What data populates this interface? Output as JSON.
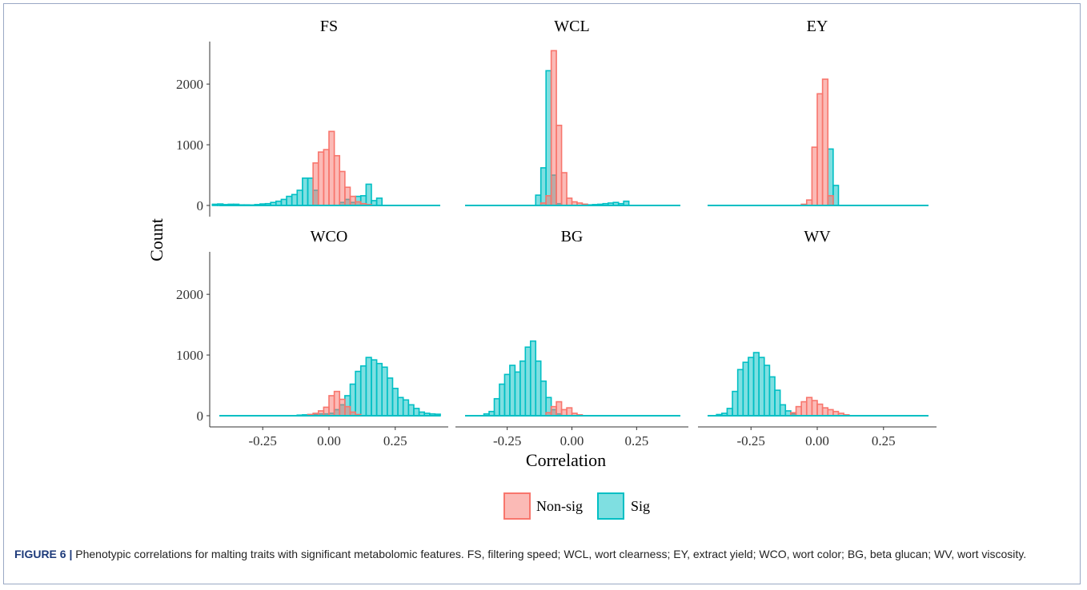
{
  "chart_data": {
    "type": "histogram",
    "facets": [
      "FS",
      "WCL",
      "EY",
      "WCO",
      "BG",
      "WV"
    ],
    "ylabel": "Count",
    "xlabel": "Correlation",
    "xticks": [
      "-0.25",
      "0.00",
      "0.25"
    ],
    "yticks": [
      "0",
      "1000",
      "2000"
    ],
    "xlim": [
      -0.45,
      0.45
    ],
    "ylim": [
      0,
      2700
    ],
    "legend": {
      "items": [
        "Non-sig",
        "Sig"
      ],
      "position": "bottom"
    },
    "series_colors": {
      "Non-sig": "#F8766D",
      "Sig": "#00BFC4"
    },
    "series_names": [
      "Non-sig",
      "Sig"
    ],
    "bin_width": 0.02,
    "panels": [
      {
        "name": "FS",
        "bins": {
          "Sig": [
            [
              -0.43,
              20
            ],
            [
              -0.41,
              25
            ],
            [
              -0.39,
              15
            ],
            [
              -0.37,
              20
            ],
            [
              -0.35,
              20
            ],
            [
              -0.33,
              10
            ],
            [
              -0.31,
              10
            ],
            [
              -0.29,
              8
            ],
            [
              -0.27,
              15
            ],
            [
              -0.25,
              25
            ],
            [
              -0.23,
              30
            ],
            [
              -0.21,
              50
            ],
            [
              -0.19,
              70
            ],
            [
              -0.17,
              100
            ],
            [
              -0.15,
              150
            ],
            [
              -0.13,
              180
            ],
            [
              -0.11,
              250
            ],
            [
              -0.09,
              450
            ],
            [
              -0.07,
              450
            ],
            [
              -0.05,
              250
            ],
            [
              0.05,
              50
            ],
            [
              0.07,
              100
            ],
            [
              0.09,
              50
            ],
            [
              0.11,
              150
            ],
            [
              0.13,
              160
            ],
            [
              0.15,
              350
            ],
            [
              0.17,
              80
            ],
            [
              0.19,
              120
            ]
          ],
          "Non-sig": [
            [
              -0.05,
              700
            ],
            [
              -0.03,
              880
            ],
            [
              -0.01,
              920
            ],
            [
              0.01,
              1220
            ],
            [
              0.03,
              820
            ],
            [
              0.05,
              560
            ],
            [
              0.07,
              300
            ],
            [
              0.09,
              150
            ],
            [
              0.11,
              60
            ],
            [
              0.13,
              30
            ],
            [
              0.15,
              15
            ]
          ]
        }
      },
      {
        "name": "WCL",
        "bins": {
          "Sig": [
            [
              -0.13,
              170
            ],
            [
              -0.11,
              620
            ],
            [
              -0.09,
              2220
            ],
            [
              -0.07,
              500
            ],
            [
              -0.05,
              30
            ],
            [
              0.05,
              20
            ],
            [
              0.07,
              10
            ],
            [
              0.09,
              15
            ],
            [
              0.11,
              20
            ],
            [
              0.13,
              30
            ],
            [
              0.15,
              40
            ],
            [
              0.17,
              50
            ],
            [
              0.19,
              30
            ],
            [
              0.21,
              70
            ]
          ],
          "Non-sig": [
            [
              -0.11,
              40
            ],
            [
              -0.09,
              160
            ],
            [
              -0.07,
              2550
            ],
            [
              -0.05,
              1320
            ],
            [
              -0.03,
              540
            ],
            [
              -0.01,
              120
            ],
            [
              0.01,
              60
            ],
            [
              0.03,
              40
            ],
            [
              0.05,
              20
            ]
          ]
        }
      },
      {
        "name": "EY",
        "bins": {
          "Sig": [
            [
              0.05,
              930
            ],
            [
              0.07,
              330
            ]
          ],
          "Non-sig": [
            [
              -0.05,
              20
            ],
            [
              -0.03,
              90
            ],
            [
              -0.01,
              960
            ],
            [
              0.01,
              1840
            ],
            [
              0.03,
              2080
            ],
            [
              0.05,
              160
            ]
          ]
        }
      },
      {
        "name": "WCO",
        "bins": {
          "Sig": [
            [
              -0.11,
              10
            ],
            [
              -0.09,
              15
            ],
            [
              -0.07,
              20
            ],
            [
              -0.05,
              20
            ],
            [
              -0.03,
              30
            ],
            [
              -0.01,
              30
            ],
            [
              0.01,
              40
            ],
            [
              0.03,
              100
            ],
            [
              0.05,
              180
            ],
            [
              0.07,
              330
            ],
            [
              0.09,
              520
            ],
            [
              0.11,
              730
            ],
            [
              0.13,
              820
            ],
            [
              0.15,
              960
            ],
            [
              0.17,
              920
            ],
            [
              0.19,
              860
            ],
            [
              0.21,
              800
            ],
            [
              0.23,
              620
            ],
            [
              0.25,
              450
            ],
            [
              0.27,
              300
            ],
            [
              0.29,
              260
            ],
            [
              0.31,
              180
            ],
            [
              0.33,
              120
            ],
            [
              0.35,
              60
            ],
            [
              0.37,
              40
            ],
            [
              0.39,
              30
            ],
            [
              0.41,
              25
            ]
          ],
          "Non-sig": [
            [
              -0.07,
              20
            ],
            [
              -0.05,
              40
            ],
            [
              -0.03,
              80
            ],
            [
              -0.01,
              140
            ],
            [
              0.01,
              330
            ],
            [
              0.03,
              400
            ],
            [
              0.05,
              270
            ],
            [
              0.07,
              150
            ],
            [
              0.09,
              60
            ],
            [
              0.11,
              20
            ]
          ]
        }
      },
      {
        "name": "BG",
        "bins": {
          "Sig": [
            [
              -0.33,
              30
            ],
            [
              -0.31,
              70
            ],
            [
              -0.29,
              280
            ],
            [
              -0.27,
              520
            ],
            [
              -0.25,
              680
            ],
            [
              -0.23,
              830
            ],
            [
              -0.21,
              720
            ],
            [
              -0.19,
              900
            ],
            [
              -0.17,
              1130
            ],
            [
              -0.15,
              1230
            ],
            [
              -0.13,
              900
            ],
            [
              -0.11,
              570
            ],
            [
              -0.09,
              300
            ],
            [
              -0.07,
              100
            ],
            [
              -0.05,
              30
            ]
          ],
          "Non-sig": [
            [
              -0.09,
              50
            ],
            [
              -0.07,
              150
            ],
            [
              -0.05,
              230
            ],
            [
              -0.03,
              100
            ],
            [
              -0.01,
              130
            ],
            [
              0.01,
              40
            ],
            [
              0.03,
              15
            ]
          ]
        }
      },
      {
        "name": "WV",
        "bins": {
          "Sig": [
            [
              -0.37,
              20
            ],
            [
              -0.35,
              40
            ],
            [
              -0.33,
              120
            ],
            [
              -0.31,
              400
            ],
            [
              -0.29,
              760
            ],
            [
              -0.27,
              880
            ],
            [
              -0.25,
              960
            ],
            [
              -0.23,
              1040
            ],
            [
              -0.21,
              960
            ],
            [
              -0.19,
              830
            ],
            [
              -0.17,
              640
            ],
            [
              -0.15,
              420
            ],
            [
              -0.13,
              180
            ],
            [
              -0.11,
              80
            ],
            [
              -0.09,
              30
            ]
          ],
          "Non-sig": [
            [
              -0.09,
              50
            ],
            [
              -0.07,
              150
            ],
            [
              -0.05,
              230
            ],
            [
              -0.03,
              300
            ],
            [
              -0.01,
              250
            ],
            [
              0.01,
              190
            ],
            [
              0.03,
              130
            ],
            [
              0.05,
              100
            ],
            [
              0.07,
              70
            ],
            [
              0.09,
              40
            ],
            [
              0.11,
              15
            ]
          ]
        }
      }
    ]
  },
  "caption": {
    "label": "FIGURE 6 |",
    "text": " Phenotypic correlations for malting traits with significant metabolomic features. FS, filtering speed; WCL, wort clearness; EY, extract yield; WCO, wort color; BG, beta glucan; WV, wort viscosity."
  }
}
